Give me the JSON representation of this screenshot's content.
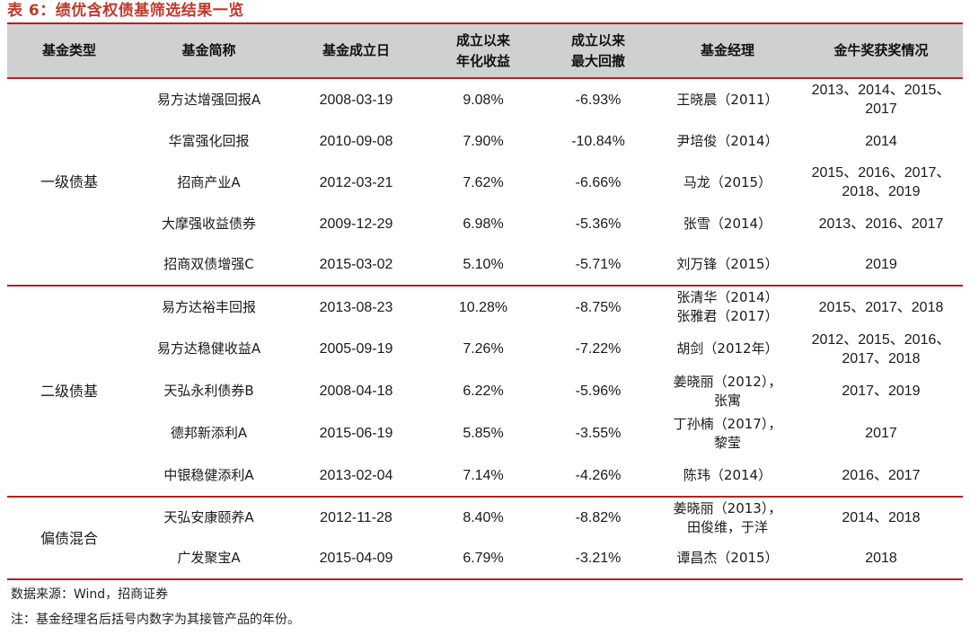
{
  "title": "表 6：绩优含权债基筛选结果一览",
  "headers": [
    "基金类型",
    "基金简称",
    "基金成立日",
    "成立以来\n年化收益",
    "成立以来\n最大回撤",
    "基金经理",
    "金牛奖获奖情况"
  ],
  "groups": [
    {
      "type": "一级债基",
      "rows": [
        {
          "name": "易方达增强回报A",
          "date": "2008-03-19",
          "return": "9.08%",
          "drawdown": "-6.93%",
          "manager": "王晓晨（2011）",
          "awards": "2013、2014、2015、\n2017"
        },
        {
          "name": "华富强化回报",
          "date": "2010-09-08",
          "return": "7.90%",
          "drawdown": "-10.84%",
          "manager": "尹培俊（2014）",
          "awards": "2014"
        },
        {
          "name": "招商产业A",
          "date": "2012-03-21",
          "return": "7.62%",
          "drawdown": "-6.66%",
          "manager": "马龙（2015）",
          "awards": "2015、2016、2017、\n2018、2019"
        },
        {
          "name": "大摩强收益债券",
          "date": "2009-12-29",
          "return": "6.98%",
          "drawdown": "-5.36%",
          "manager": "张雪（2014）",
          "awards": "2013、2016、2017"
        },
        {
          "name": "招商双债增强C",
          "date": "2015-03-02",
          "return": "5.10%",
          "drawdown": "-5.71%",
          "manager": "刘万锋（2015）",
          "awards": "2019"
        }
      ]
    },
    {
      "type": "二级债基",
      "rows": [
        {
          "name": "易方达裕丰回报",
          "date": "2013-08-23",
          "return": "10.28%",
          "drawdown": "-8.75%",
          "manager": "张清华（2014）\n张雅君（2017）",
          "awards": "2015、2017、2018"
        },
        {
          "name": "易方达稳健收益A",
          "date": "2005-09-19",
          "return": "7.26%",
          "drawdown": "-7.22%",
          "manager": "胡剑（2012年）",
          "awards": "2012、2015、2016、\n2017、2018"
        },
        {
          "name": "天弘永利债券B",
          "date": "2008-04-18",
          "return": "6.22%",
          "drawdown": "-5.96%",
          "manager": "姜晓丽（2012），\n张寓",
          "awards": "2017、2019"
        },
        {
          "name": "德邦新添利A",
          "date": "2015-06-19",
          "return": "5.85%",
          "drawdown": "-3.55%",
          "manager": "丁孙楠（2017），\n黎莹",
          "awards": "2017"
        },
        {
          "name": "中银稳健添利A",
          "date": "2013-02-04",
          "return": "7.14%",
          "drawdown": "-4.26%",
          "manager": "陈玮（2014）",
          "awards": "2016、2017"
        }
      ]
    },
    {
      "type": "偏债混合",
      "rows": [
        {
          "name": "天弘安康颐养A",
          "date": "2012-11-28",
          "return": "8.40%",
          "drawdown": "-8.82%",
          "manager": "姜晓丽（2013），\n田俊维，于洋",
          "awards": "2014、2018"
        },
        {
          "name": "广发聚宝A",
          "date": "2015-04-09",
          "return": "6.79%",
          "drawdown": "-3.21%",
          "manager": "谭昌杰（2015）",
          "awards": "2018"
        }
      ]
    }
  ],
  "notes": {
    "source": "数据来源：Wind，招商证券",
    "footnote": "注：基金经理名后括号内数字为其接管产品的年份。"
  }
}
